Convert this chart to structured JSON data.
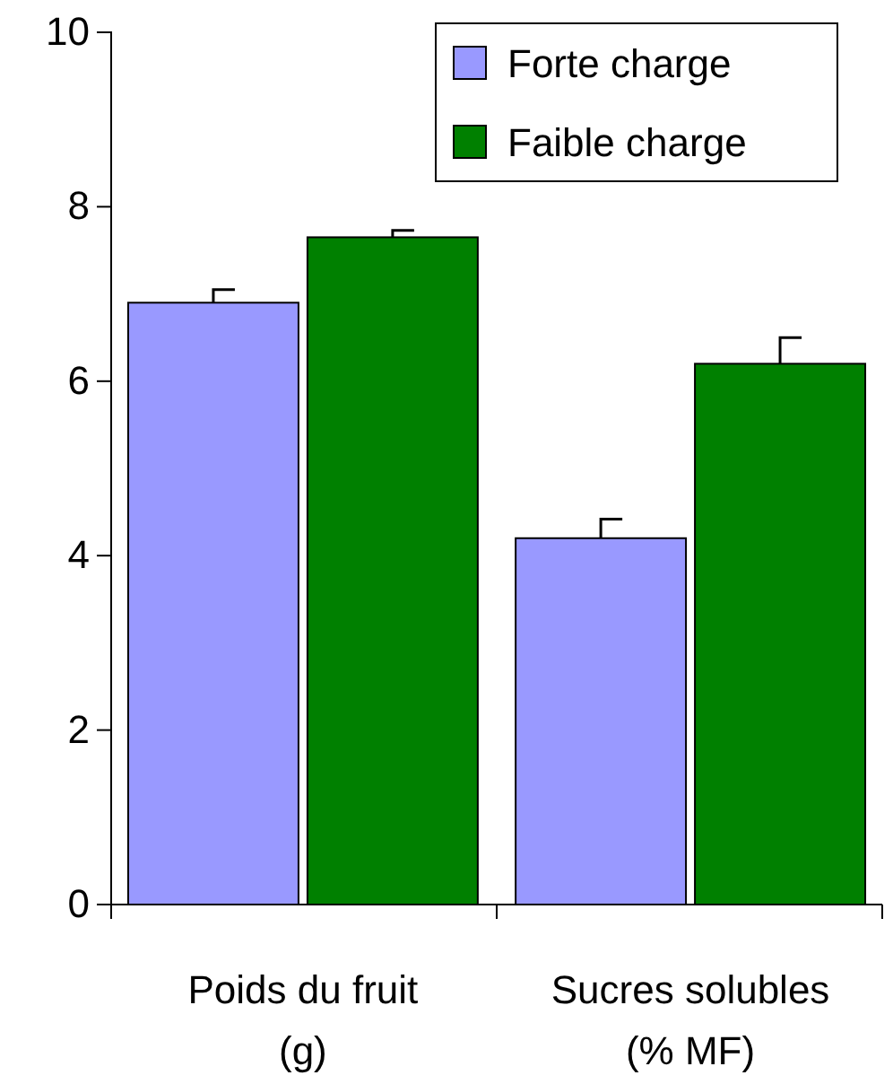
{
  "chart_data": {
    "type": "bar",
    "categories": [
      "Poids du fruit (g)",
      "Sucres solubles (% MF)"
    ],
    "series": [
      {
        "name": "Forte charge",
        "color": "#9999ff",
        "values": [
          6.9,
          4.2
        ],
        "errors": [
          0.15,
          0.22
        ]
      },
      {
        "name": "Faible charge",
        "color": "#008000",
        "values": [
          7.65,
          6.2
        ],
        "errors": [
          0.08,
          0.3
        ]
      }
    ],
    "ylim": [
      0,
      10
    ],
    "yticks": [
      0,
      2,
      4,
      6,
      8,
      10
    ],
    "legend": "top right",
    "grid": false
  }
}
